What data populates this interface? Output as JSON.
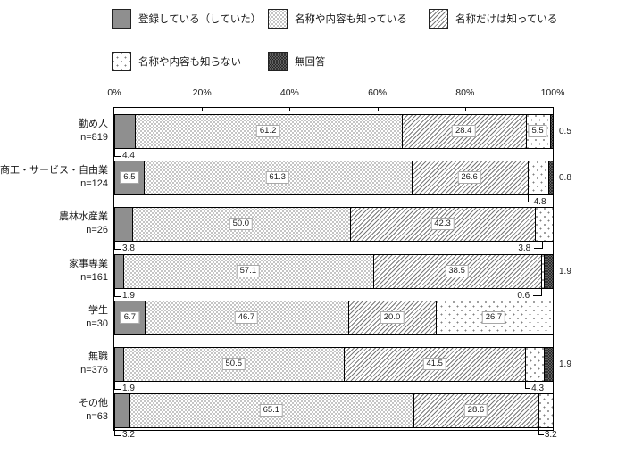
{
  "chart_data": {
    "type": "stacked-bar-horizontal",
    "unit": "percent",
    "xlim": [
      0,
      100
    ],
    "x_ticks": [
      "0%",
      "20%",
      "40%",
      "60%",
      "80%",
      "100%"
    ],
    "grid": false,
    "legend_position": "top",
    "series": [
      {
        "name": "登録している（していた）",
        "pattern": "solid-gray"
      },
      {
        "name": "名称や内容も知っている",
        "pattern": "fine-dots"
      },
      {
        "name": "名称だけは知っている",
        "pattern": "diagonal-hatch"
      },
      {
        "name": "名称や内容も知らない",
        "pattern": "sparse-dots"
      },
      {
        "name": "無回答",
        "pattern": "dark-dots"
      }
    ],
    "rows": [
      {
        "category": "勤め人",
        "n_label": "n=819",
        "values": [
          4.4,
          61.2,
          28.4,
          5.5,
          0.5
        ],
        "label_placement": [
          "below-left",
          "inside",
          "inside",
          "inside",
          "outside-right"
        ]
      },
      {
        "category": "商工・サービス・自由業",
        "n_label": "n=124",
        "values": [
          6.5,
          61.3,
          26.6,
          4.8,
          0.8
        ],
        "label_placement": [
          "inside",
          "inside",
          "inside",
          "below-hook-left",
          "outside-right"
        ]
      },
      {
        "category": "農林水産業",
        "n_label": "n=26",
        "values": [
          3.8,
          50.0,
          42.3,
          3.8,
          null
        ],
        "label_placement": [
          "below-left",
          "inside",
          "inside",
          "below-hook-right",
          null
        ]
      },
      {
        "category": "家事専業",
        "n_label": "n=161",
        "values": [
          1.9,
          57.1,
          38.5,
          0.6,
          1.9
        ],
        "label_placement": [
          "below-left",
          "inside",
          "inside",
          "below-hook-right",
          "outside-right"
        ]
      },
      {
        "category": "学生",
        "n_label": "n=30",
        "values": [
          6.7,
          46.7,
          20.0,
          26.7,
          null
        ],
        "label_placement": [
          "inside",
          "inside",
          "inside",
          "inside",
          null
        ]
      },
      {
        "category": "無職",
        "n_label": "n=376",
        "values": [
          1.9,
          50.5,
          41.5,
          4.3,
          1.9
        ],
        "label_placement": [
          "below-left",
          "inside",
          "inside",
          "below-hook-left",
          "outside-right"
        ]
      },
      {
        "category": "その他",
        "n_label": "n=63",
        "values": [
          3.2,
          65.1,
          28.6,
          3.2,
          null
        ],
        "label_placement": [
          "below-left",
          "inside",
          "inside",
          "below-hook-left",
          null
        ]
      }
    ],
    "colors": {
      "solid_segment": "#8f8f8f",
      "pattern_ink": "#787878",
      "dark_segment_base": "#a8a8a8",
      "border": "#000000",
      "text": "#1a1a1a"
    }
  }
}
